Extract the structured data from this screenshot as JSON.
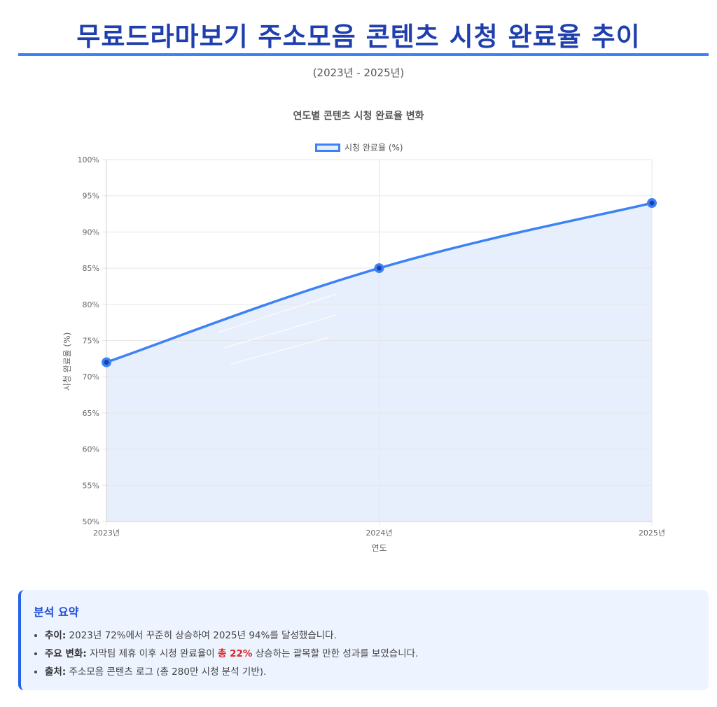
{
  "header": {
    "title": "무료드라마보기 주소모음 콘텐츠 시청 완료율 추이",
    "subtitle": "(2023년 - 2025년)"
  },
  "chart": {
    "title": "연도별 콘텐츠 시청 완료율 변화",
    "legend_label": "시청 완료율 (%)",
    "y_axis_label": "시청 완료율 (%)",
    "x_axis_label": "연도",
    "y_ticks": [
      "100%",
      "95%",
      "90%",
      "85%",
      "80%",
      "75%",
      "70%",
      "65%",
      "60%",
      "55%",
      "50%"
    ],
    "x_ticks": [
      "2023년",
      "2024년",
      "2025년"
    ]
  },
  "chart_data": {
    "type": "line",
    "title": "연도별 콘텐츠 시청 완료율 변화",
    "categories": [
      "2023년",
      "2024년",
      "2025년"
    ],
    "series": [
      {
        "name": "시청 완료율 (%)",
        "values": [
          72,
          85,
          94
        ],
        "color": "#3b82f6",
        "fill": "#e8effc"
      }
    ],
    "xlabel": "연도",
    "ylabel": "시청 완료율 (%)",
    "ylim": [
      50,
      100
    ],
    "y_tick_step": 5,
    "grid": true,
    "legend_position": "top"
  },
  "summary": {
    "title": "분석 요약",
    "items": [
      {
        "label": "추이:",
        "text": " 2023년 72%에서 꾸준히 상승하여 2025년 94%를 달성했습니다."
      },
      {
        "label": "주요 변화:",
        "text_before": " 자막팀 제휴 이후 시청 완료율이 ",
        "highlight": "총 22%",
        "text_after": " 상승하는 괄목할 만한 성과를 보였습니다."
      },
      {
        "label": "출처:",
        "text": " 주소모음 콘텐츠 로그 (총 280만 시청 분석 기반)."
      }
    ]
  },
  "colors": {
    "title": "#1f3fae",
    "accent": "#3b82f6",
    "highlight": "#dc2626",
    "summary_bg": "#eef4ff"
  }
}
